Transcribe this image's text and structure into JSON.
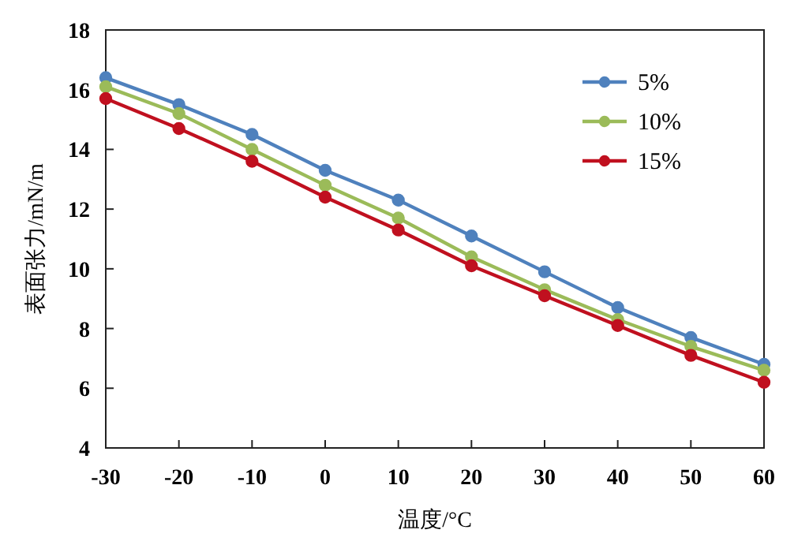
{
  "chart_data": {
    "type": "line",
    "xlabel": "温度/°C",
    "ylabel": "表面张力/mN/m",
    "x": [
      -30,
      -20,
      -10,
      0,
      10,
      20,
      30,
      40,
      50,
      60
    ],
    "series": [
      {
        "name": "5%",
        "color": "#4f81bd",
        "values": [
          16.4,
          15.5,
          14.5,
          13.3,
          12.3,
          11.1,
          9.9,
          8.7,
          7.7,
          6.8
        ]
      },
      {
        "name": "10%",
        "color": "#9bbb59",
        "values": [
          16.1,
          15.2,
          14.0,
          12.8,
          11.7,
          10.4,
          9.3,
          8.3,
          7.4,
          6.6
        ]
      },
      {
        "name": "15%",
        "color": "#c0101f",
        "values": [
          15.7,
          14.7,
          13.6,
          12.4,
          11.3,
          10.1,
          9.1,
          8.1,
          7.1,
          6.2
        ]
      }
    ],
    "xlim": [
      -30,
      60
    ],
    "xticks": [
      -30,
      -20,
      -10,
      0,
      10,
      20,
      30,
      40,
      50,
      60
    ],
    "ylim": [
      4,
      18
    ],
    "yticks": [
      4,
      6,
      8,
      10,
      12,
      14,
      16,
      18
    ],
    "marker": "circle",
    "line_style": "solid",
    "legend": "top right",
    "grid": false
  }
}
